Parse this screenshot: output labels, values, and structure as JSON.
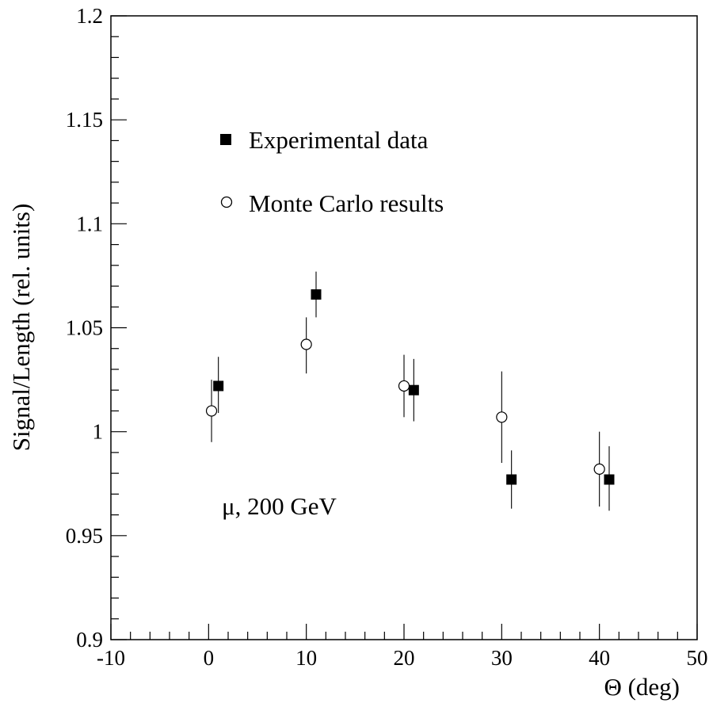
{
  "chart_data": {
    "type": "scatter",
    "title": "",
    "xlabel": "Θ (deg)",
    "ylabel": "Signal/Length (rel. units)",
    "xlim": [
      -10,
      50
    ],
    "ylim": [
      0.9,
      1.2
    ],
    "x_ticks": [
      -10,
      0,
      10,
      20,
      30,
      40,
      50
    ],
    "x_tick_labels": [
      "-10",
      "0",
      "10",
      "20",
      "30",
      "40",
      "50"
    ],
    "y_ticks": [
      0.9,
      0.95,
      1.0,
      1.05,
      1.1,
      1.15,
      1.2
    ],
    "y_tick_labels": [
      "0.9",
      "0.95",
      "1",
      "1.05",
      "1.1",
      "1.15",
      "1.2"
    ],
    "legend_position": "upper-left",
    "grid": false,
    "series": [
      {
        "name": "Experimental data",
        "marker": "filled-square",
        "x": [
          1,
          11,
          21,
          31,
          41
        ],
        "y": [
          1.022,
          1.066,
          1.02,
          0.977,
          0.977
        ],
        "yerr_low": [
          0.013,
          0.011,
          0.015,
          0.014,
          0.015
        ],
        "yerr_high": [
          0.014,
          0.011,
          0.015,
          0.014,
          0.016
        ]
      },
      {
        "name": "Monte Carlo results",
        "marker": "open-circle",
        "x": [
          0.3,
          10,
          20,
          30,
          40
        ],
        "y": [
          1.01,
          1.042,
          1.022,
          1.007,
          0.982
        ],
        "yerr_low": [
          0.015,
          0.014,
          0.015,
          0.022,
          0.018
        ],
        "yerr_high": [
          0.015,
          0.013,
          0.015,
          0.022,
          0.018
        ]
      }
    ],
    "annotation": "μ, 200 GeV"
  }
}
